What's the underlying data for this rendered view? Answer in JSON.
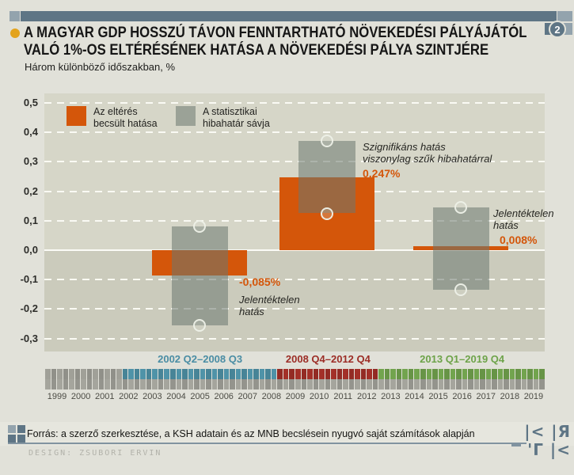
{
  "header": {
    "badge_number": "2",
    "title_line1": "A MAGYAR GDP HOSSZÚ TÁVON FENNTARTHATÓ NÖVEKEDÉSI PÁLYÁJÁTÓL",
    "title_line2": "VALÓ 1%-OS ELTÉRÉSÉNEK HATÁSA A NÖVEKEDÉSI PÁLYA SZINTJÉRE",
    "subtitle": "Három különböző időszakban, %",
    "bar_color": "#5e7585",
    "bullet_color": "#e3a31d"
  },
  "legend": {
    "items": [
      {
        "label_lines": [
          "Az eltérés",
          "becsült hatása"
        ],
        "color": "#d4560a"
      },
      {
        "label_lines": [
          "A statisztikai",
          "hibahatár sávja"
        ],
        "color": "rgba(108,120,112,0.55)"
      }
    ]
  },
  "chart_data": {
    "type": "bar",
    "title": "A magyar GDP hosszú távon fenntartható növekedési pályájától való 1%-os eltérésének hatása a növekedési pálya szintjére",
    "subtitle": "Három különböző időszakban, %",
    "unit": "%",
    "ylim": [
      -0.3,
      0.5
    ],
    "grid": true,
    "ytick_values": [
      0.5,
      0.4,
      0.3,
      0.2,
      0.1,
      0.0,
      -0.1,
      -0.2,
      -0.3
    ],
    "ytick_labels": [
      "0,5",
      "0,4",
      "0,3",
      "0,2",
      "0,1",
      "0,0",
      "-0,1",
      "-0,2",
      "-0,3"
    ],
    "groups": [
      {
        "period_label": "2002 Q2–2008 Q3",
        "period_color": "#4a8da4",
        "effect_value": -0.085,
        "effect_label": "-0,085%",
        "band_high": 0.08,
        "band_low": -0.255,
        "annotation_lines": [
          "Jelentéktelen",
          "hatás"
        ]
      },
      {
        "period_label": "2008 Q4–2012 Q4",
        "period_color": "#9c2d26",
        "effect_value": 0.247,
        "effect_label": "0,247%",
        "band_high": 0.37,
        "band_low": 0.125,
        "annotation_lines": [
          "Szignifikáns hatás",
          "viszonylag szűk hibahatárral"
        ]
      },
      {
        "period_label": "2013 Q1–2019 Q4",
        "period_color": "#6da349",
        "effect_value": 0.008,
        "effect_label": "0,008%",
        "band_high": 0.145,
        "band_low": -0.135,
        "annotation_lines": [
          "Jelentéktelen",
          "hatás"
        ]
      }
    ],
    "colors": {
      "bar": "#d4560a",
      "band": "rgba(108,120,112,0.55)",
      "grid": "rgba(252,252,246,0.95)"
    }
  },
  "timeline": {
    "start_year": 1999,
    "end_year": 2019,
    "quarters_per_year": 4,
    "year_labels": [
      "1999",
      "2000",
      "2001",
      "2002",
      "2003",
      "2004",
      "2005",
      "2006",
      "2007",
      "2008",
      "2009",
      "2010",
      "2011",
      "2012",
      "2013",
      "2014",
      "2015",
      "2016",
      "2017",
      "2018",
      "2019"
    ],
    "segments": [
      {
        "label": "2002 Q2–2008 Q3",
        "color": "#4f93a8",
        "start_quarter": "2002 Q2",
        "end_quarter": "2008 Q3"
      },
      {
        "label": "2008 Q4–2012 Q4",
        "color": "#a33028",
        "start_quarter": "2008 Q4",
        "end_quarter": "2012 Q4"
      },
      {
        "label": "2013 Q1–2019 Q4",
        "color": "#72a44e",
        "start_quarter": "2013 Q1",
        "end_quarter": "2019 Q4"
      }
    ],
    "base_cell_color": "#a0a098",
    "bottom_row_color": "#a5a59d"
  },
  "footer": {
    "source": "Forrás: a szerző szerkesztése, a KSH adatain és az MNB becslésein nyugvó saját számítások alapján",
    "design_credit": "DESIGN: ZSUBORI ERVIN",
    "logo_row1": "|< |Я",
    "logo_row2": "'Γ |<"
  }
}
